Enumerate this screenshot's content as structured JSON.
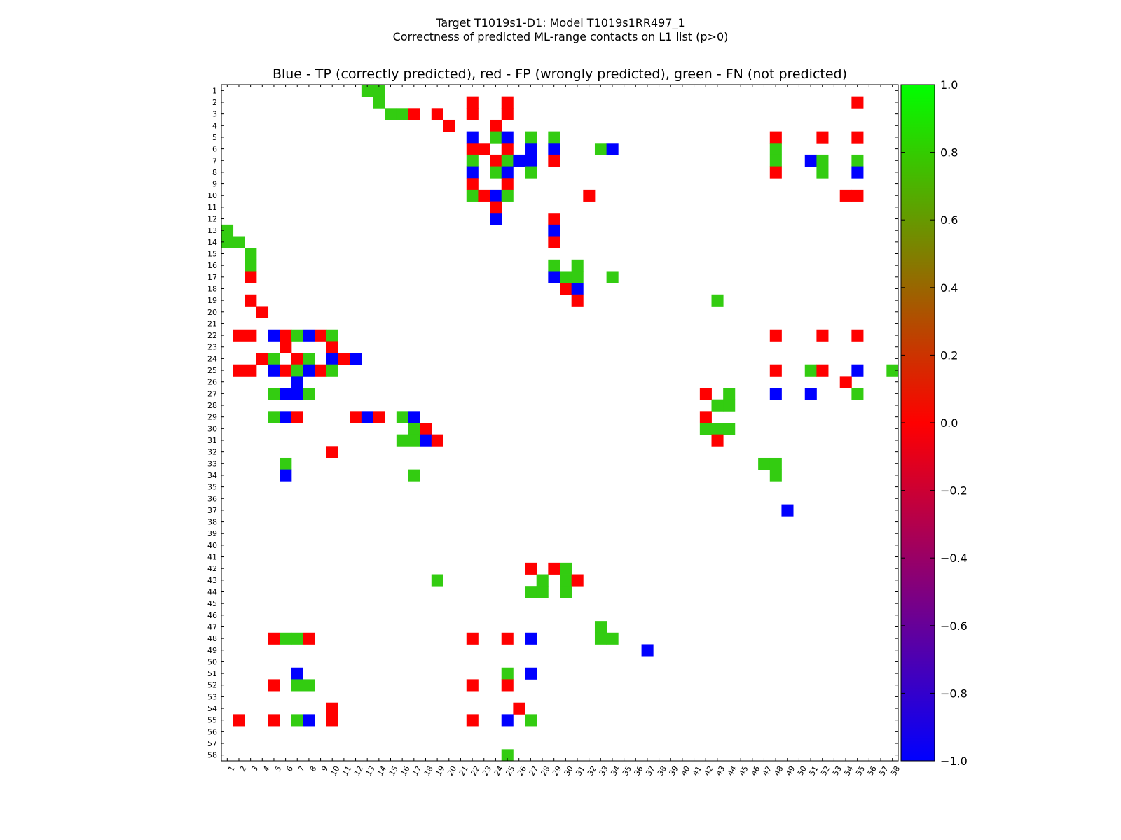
{
  "suptitle_line1": "Target T1019s1-D1: Model T1019s1RR497_1",
  "suptitle_line2": "Correctness of predicted ML-range contacts on L1 list (p>0)",
  "chart_data": {
    "type": "heatmap",
    "title": "Blue - TP (correctly predicted), red - FP (wrongly predicted), green - FN (not predicted)",
    "xlabel": "",
    "ylabel": "",
    "n": 58,
    "x_ticks": [
      1,
      2,
      3,
      4,
      5,
      6,
      7,
      8,
      9,
      10,
      11,
      12,
      13,
      14,
      15,
      16,
      17,
      18,
      19,
      20,
      21,
      22,
      23,
      24,
      25,
      26,
      27,
      28,
      29,
      30,
      31,
      32,
      33,
      34,
      35,
      36,
      37,
      38,
      39,
      40,
      41,
      42,
      43,
      44,
      45,
      46,
      47,
      48,
      49,
      50,
      51,
      52,
      53,
      54,
      55,
      56,
      57,
      58
    ],
    "y_ticks": [
      1,
      2,
      3,
      4,
      5,
      6,
      7,
      8,
      9,
      10,
      11,
      12,
      13,
      14,
      15,
      16,
      17,
      18,
      19,
      20,
      21,
      22,
      23,
      24,
      25,
      26,
      27,
      28,
      29,
      30,
      31,
      32,
      33,
      34,
      35,
      36,
      37,
      38,
      39,
      40,
      41,
      42,
      43,
      44,
      45,
      46,
      47,
      48,
      49,
      50,
      51,
      52,
      53,
      54,
      55,
      56,
      57,
      58
    ],
    "x_tick_display": [
      "1",
      "2",
      "3",
      "4",
      "5",
      "6",
      "7",
      "8",
      "9",
      "10",
      "11",
      "12",
      "13",
      "14",
      "15",
      "16",
      "17",
      "18",
      "19",
      "20",
      "21",
      "22",
      "23",
      "24",
      "25",
      "26",
      "27",
      "28",
      "29",
      "30",
      "31",
      "32",
      "33",
      "34",
      "35",
      "36",
      "37",
      "38",
      "39",
      "40",
      "41",
      "42",
      "43",
      "44",
      "45",
      "46",
      "47",
      "48",
      "49",
      "50",
      "51",
      "52",
      "53",
      "54",
      "55",
      "56",
      "57",
      "58"
    ],
    "y_tick_display": [
      "1",
      "2",
      "3",
      "4",
      "5",
      "6",
      "7",
      "8",
      "9",
      "10",
      "11",
      "12",
      "13",
      "14",
      "15",
      "16",
      "17",
      "18",
      "19",
      "20",
      "21",
      "22",
      "23",
      "24",
      "25",
      "26",
      "27",
      "28",
      "29",
      "30",
      "31",
      "32",
      "33",
      "34",
      "35",
      "36",
      "37",
      "38",
      "39",
      "40",
      "41",
      "42",
      "43",
      "44",
      "45",
      "46",
      "47",
      "48",
      "49",
      "50",
      "51",
      "52",
      "53",
      "54",
      "55",
      "56",
      "57",
      "58"
    ],
    "value_legend": {
      "TP": -1,
      "FP": 0,
      "FN": 0.8
    },
    "colorbar": {
      "range": [
        -1.0,
        1.0
      ],
      "ticks": [
        -1.0,
        -0.8,
        -0.6,
        -0.4,
        -0.2,
        0.0,
        0.2,
        0.4,
        0.6,
        0.8,
        1.0
      ],
      "tick_labels": [
        "−1.0",
        "−0.8",
        "−0.6",
        "−0.4",
        "−0.2",
        "0.0",
        "0.2",
        "0.4",
        "0.6",
        "0.8",
        "1.0"
      ],
      "colors": [
        "#0000ff",
        "#ff0000",
        "#00ff00"
      ]
    },
    "grid": false,
    "cells": [
      [
        13,
        1,
        "FN"
      ],
      [
        14,
        1,
        "FN"
      ],
      [
        14,
        2,
        "FN"
      ],
      [
        22,
        2,
        "FP"
      ],
      [
        25,
        2,
        "FP"
      ],
      [
        55,
        2,
        "FP"
      ],
      [
        15,
        3,
        "FN"
      ],
      [
        16,
        3,
        "FN"
      ],
      [
        17,
        3,
        "FP"
      ],
      [
        19,
        3,
        "FP"
      ],
      [
        22,
        3,
        "FP"
      ],
      [
        25,
        3,
        "FP"
      ],
      [
        20,
        4,
        "FP"
      ],
      [
        24,
        4,
        "FP"
      ],
      [
        22,
        5,
        "TP"
      ],
      [
        24,
        5,
        "FN"
      ],
      [
        25,
        5,
        "TP"
      ],
      [
        27,
        5,
        "FN"
      ],
      [
        29,
        5,
        "FN"
      ],
      [
        48,
        5,
        "FP"
      ],
      [
        52,
        5,
        "FP"
      ],
      [
        55,
        5,
        "FP"
      ],
      [
        22,
        6,
        "FP"
      ],
      [
        23,
        6,
        "FP"
      ],
      [
        25,
        6,
        "FP"
      ],
      [
        27,
        6,
        "TP"
      ],
      [
        29,
        6,
        "TP"
      ],
      [
        33,
        6,
        "FN"
      ],
      [
        34,
        6,
        "TP"
      ],
      [
        48,
        6,
        "FN"
      ],
      [
        22,
        7,
        "FN"
      ],
      [
        24,
        7,
        "FP"
      ],
      [
        25,
        7,
        "FN"
      ],
      [
        26,
        7,
        "TP"
      ],
      [
        27,
        7,
        "TP"
      ],
      [
        29,
        7,
        "FP"
      ],
      [
        48,
        7,
        "FN"
      ],
      [
        51,
        7,
        "TP"
      ],
      [
        52,
        7,
        "FN"
      ],
      [
        55,
        7,
        "FN"
      ],
      [
        22,
        8,
        "TP"
      ],
      [
        24,
        8,
        "FN"
      ],
      [
        25,
        8,
        "TP"
      ],
      [
        27,
        8,
        "FN"
      ],
      [
        48,
        8,
        "FP"
      ],
      [
        52,
        8,
        "FN"
      ],
      [
        55,
        8,
        "TP"
      ],
      [
        22,
        9,
        "FP"
      ],
      [
        25,
        9,
        "FP"
      ],
      [
        22,
        10,
        "FN"
      ],
      [
        23,
        10,
        "FP"
      ],
      [
        24,
        10,
        "TP"
      ],
      [
        25,
        10,
        "FN"
      ],
      [
        32,
        10,
        "FP"
      ],
      [
        54,
        10,
        "FP"
      ],
      [
        55,
        10,
        "FP"
      ],
      [
        24,
        11,
        "FP"
      ],
      [
        24,
        12,
        "TP"
      ],
      [
        29,
        12,
        "FP"
      ],
      [
        1,
        13,
        "FN"
      ],
      [
        29,
        13,
        "TP"
      ],
      [
        1,
        14,
        "FN"
      ],
      [
        2,
        14,
        "FN"
      ],
      [
        29,
        14,
        "FP"
      ],
      [
        3,
        15,
        "FN"
      ],
      [
        3,
        16,
        "FN"
      ],
      [
        29,
        16,
        "FN"
      ],
      [
        31,
        16,
        "FN"
      ],
      [
        3,
        17,
        "FP"
      ],
      [
        29,
        17,
        "TP"
      ],
      [
        30,
        17,
        "FN"
      ],
      [
        31,
        17,
        "FN"
      ],
      [
        34,
        17,
        "FN"
      ],
      [
        30,
        18,
        "FP"
      ],
      [
        31,
        18,
        "TP"
      ],
      [
        3,
        19,
        "FP"
      ],
      [
        31,
        19,
        "FP"
      ],
      [
        43,
        19,
        "FN"
      ],
      [
        4,
        20,
        "FP"
      ],
      [
        2,
        22,
        "FP"
      ],
      [
        3,
        22,
        "FP"
      ],
      [
        5,
        22,
        "TP"
      ],
      [
        6,
        22,
        "FP"
      ],
      [
        7,
        22,
        "FN"
      ],
      [
        8,
        22,
        "TP"
      ],
      [
        9,
        22,
        "FP"
      ],
      [
        10,
        22,
        "FN"
      ],
      [
        48,
        22,
        "FP"
      ],
      [
        52,
        22,
        "FP"
      ],
      [
        55,
        22,
        "FP"
      ],
      [
        6,
        23,
        "FP"
      ],
      [
        10,
        23,
        "FP"
      ],
      [
        4,
        24,
        "FP"
      ],
      [
        5,
        24,
        "FN"
      ],
      [
        7,
        24,
        "FP"
      ],
      [
        8,
        24,
        "FN"
      ],
      [
        10,
        24,
        "TP"
      ],
      [
        11,
        24,
        "FP"
      ],
      [
        12,
        24,
        "TP"
      ],
      [
        2,
        25,
        "FP"
      ],
      [
        3,
        25,
        "FP"
      ],
      [
        5,
        25,
        "TP"
      ],
      [
        6,
        25,
        "FP"
      ],
      [
        7,
        25,
        "FN"
      ],
      [
        8,
        25,
        "TP"
      ],
      [
        9,
        25,
        "FP"
      ],
      [
        10,
        25,
        "FN"
      ],
      [
        48,
        25,
        "FP"
      ],
      [
        51,
        25,
        "FN"
      ],
      [
        52,
        25,
        "FP"
      ],
      [
        55,
        25,
        "TP"
      ],
      [
        58,
        25,
        "FN"
      ],
      [
        7,
        26,
        "TP"
      ],
      [
        54,
        26,
        "FP"
      ],
      [
        5,
        27,
        "FN"
      ],
      [
        6,
        27,
        "TP"
      ],
      [
        7,
        27,
        "TP"
      ],
      [
        8,
        27,
        "FN"
      ],
      [
        42,
        27,
        "FP"
      ],
      [
        44,
        27,
        "FN"
      ],
      [
        48,
        27,
        "TP"
      ],
      [
        51,
        27,
        "TP"
      ],
      [
        55,
        27,
        "FN"
      ],
      [
        43,
        28,
        "FN"
      ],
      [
        44,
        28,
        "FN"
      ],
      [
        5,
        29,
        "FN"
      ],
      [
        6,
        29,
        "TP"
      ],
      [
        7,
        29,
        "FP"
      ],
      [
        12,
        29,
        "FP"
      ],
      [
        13,
        29,
        "TP"
      ],
      [
        14,
        29,
        "FP"
      ],
      [
        16,
        29,
        "FN"
      ],
      [
        17,
        29,
        "TP"
      ],
      [
        42,
        29,
        "FP"
      ],
      [
        17,
        30,
        "FN"
      ],
      [
        18,
        30,
        "FP"
      ],
      [
        42,
        30,
        "FN"
      ],
      [
        43,
        30,
        "FN"
      ],
      [
        44,
        30,
        "FN"
      ],
      [
        16,
        31,
        "FN"
      ],
      [
        17,
        31,
        "FN"
      ],
      [
        18,
        31,
        "TP"
      ],
      [
        19,
        31,
        "FP"
      ],
      [
        43,
        31,
        "FP"
      ],
      [
        10,
        32,
        "FP"
      ],
      [
        6,
        33,
        "FN"
      ],
      [
        47,
        33,
        "FN"
      ],
      [
        48,
        33,
        "FN"
      ],
      [
        6,
        34,
        "TP"
      ],
      [
        17,
        34,
        "FN"
      ],
      [
        48,
        34,
        "FN"
      ],
      [
        49,
        37,
        "TP"
      ],
      [
        27,
        42,
        "FP"
      ],
      [
        29,
        42,
        "FP"
      ],
      [
        30,
        42,
        "FN"
      ],
      [
        19,
        43,
        "FN"
      ],
      [
        28,
        43,
        "FN"
      ],
      [
        30,
        43,
        "FN"
      ],
      [
        31,
        43,
        "FP"
      ],
      [
        27,
        44,
        "FN"
      ],
      [
        28,
        44,
        "FN"
      ],
      [
        30,
        44,
        "FN"
      ],
      [
        33,
        47,
        "FN"
      ],
      [
        5,
        48,
        "FP"
      ],
      [
        6,
        48,
        "FN"
      ],
      [
        7,
        48,
        "FN"
      ],
      [
        8,
        48,
        "FP"
      ],
      [
        22,
        48,
        "FP"
      ],
      [
        25,
        48,
        "FP"
      ],
      [
        27,
        48,
        "TP"
      ],
      [
        33,
        48,
        "FN"
      ],
      [
        34,
        48,
        "FN"
      ],
      [
        37,
        49,
        "TP"
      ],
      [
        7,
        51,
        "TP"
      ],
      [
        25,
        51,
        "FN"
      ],
      [
        27,
        51,
        "TP"
      ],
      [
        5,
        52,
        "FP"
      ],
      [
        7,
        52,
        "FN"
      ],
      [
        8,
        52,
        "FN"
      ],
      [
        22,
        52,
        "FP"
      ],
      [
        25,
        52,
        "FP"
      ],
      [
        10,
        54,
        "FP"
      ],
      [
        26,
        54,
        "FP"
      ],
      [
        2,
        55,
        "FP"
      ],
      [
        5,
        55,
        "FP"
      ],
      [
        7,
        55,
        "FN"
      ],
      [
        8,
        55,
        "TP"
      ],
      [
        10,
        55,
        "FP"
      ],
      [
        22,
        55,
        "FP"
      ],
      [
        25,
        55,
        "TP"
      ],
      [
        27,
        55,
        "FN"
      ],
      [
        25,
        58,
        "FN"
      ]
    ]
  }
}
